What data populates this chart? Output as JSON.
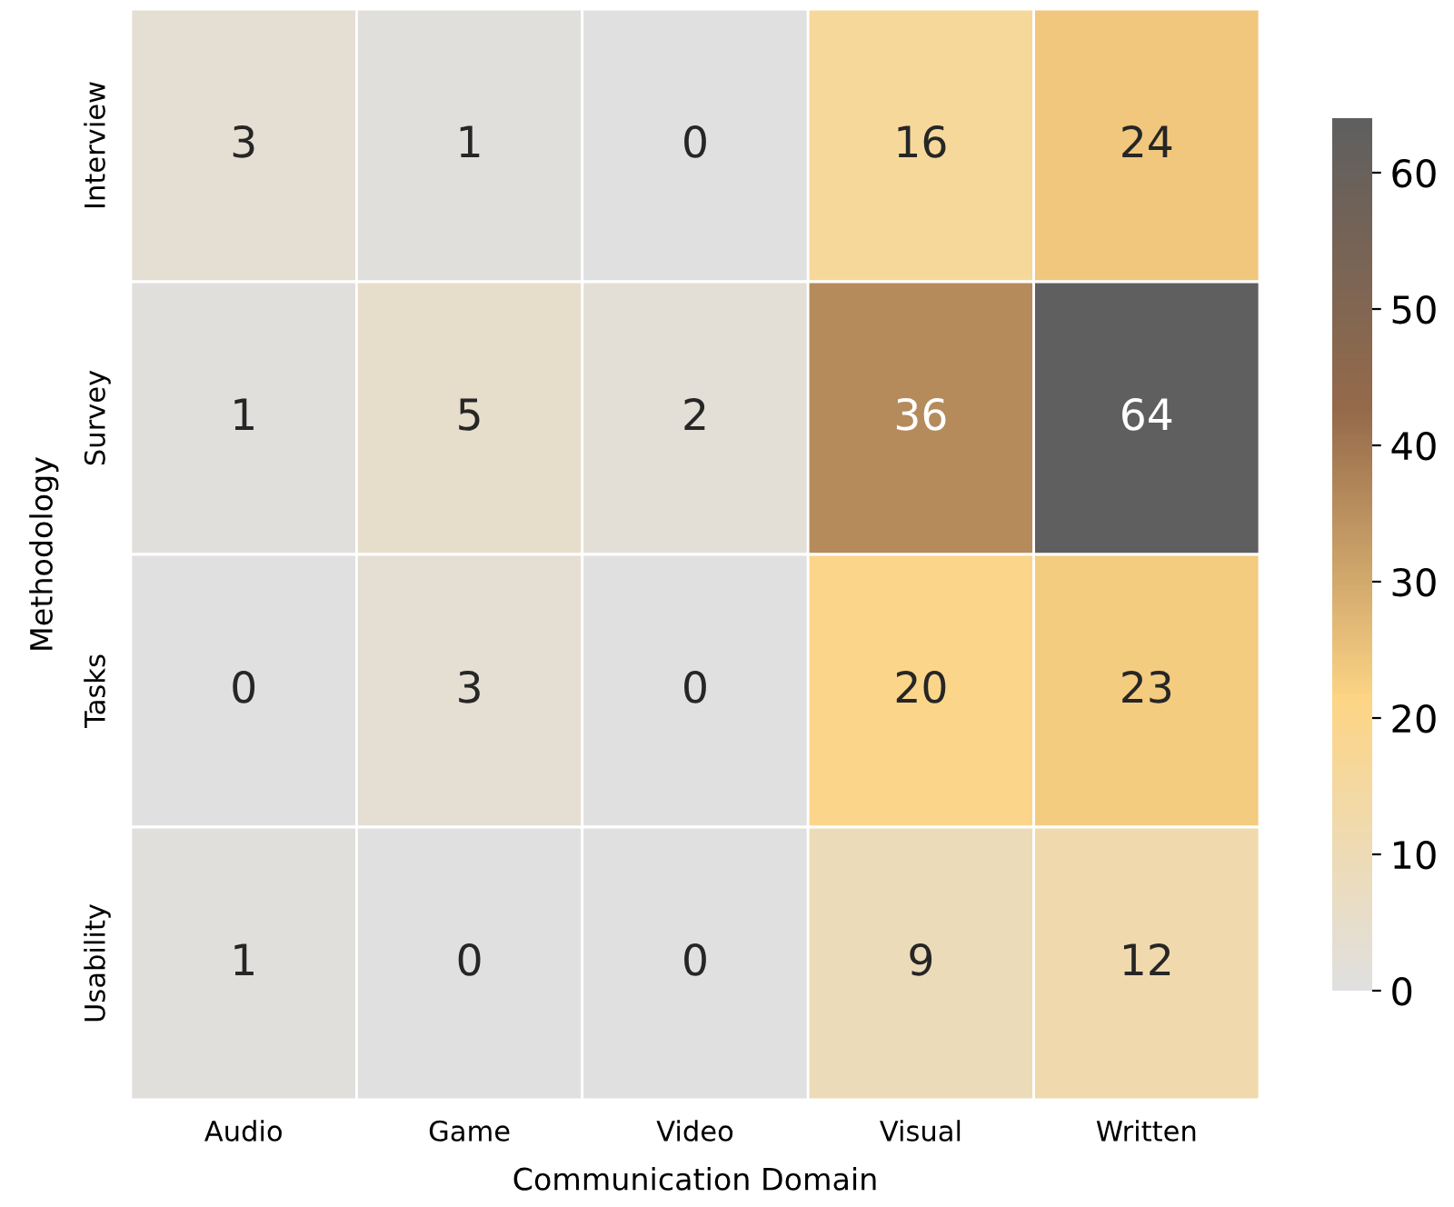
{
  "chart_data": {
    "type": "heatmap",
    "xlabel": "Communication Domain",
    "ylabel": "Methodology",
    "categories": [
      "Audio",
      "Game",
      "Video",
      "Visual",
      "Written"
    ],
    "y_categories": [
      "Interview",
      "Survey",
      "Tasks",
      "Usability"
    ],
    "cells": [
      [
        3,
        1,
        0,
        16,
        24
      ],
      [
        1,
        5,
        2,
        36,
        64
      ],
      [
        0,
        3,
        0,
        20,
        23
      ],
      [
        1,
        0,
        0,
        9,
        12
      ]
    ],
    "data_labels": true,
    "colors": [
      "#e0e0e0",
      "#fdd585",
      "#956a4a",
      "#5f5f5f"
    ],
    "clim": [
      0,
      64
    ],
    "cticks": [
      0,
      10,
      20,
      30,
      40,
      50,
      60
    ]
  }
}
